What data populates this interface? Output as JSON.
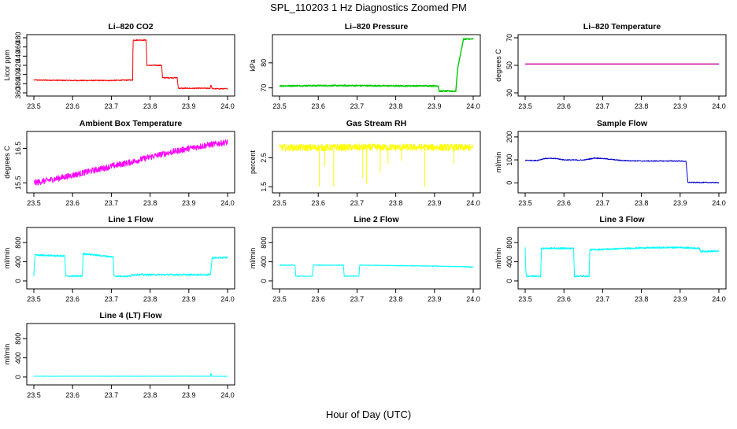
{
  "figure": {
    "title": "SPL_110203  1 Hz Diagnostics Zoomed PM",
    "xlabel": "Hour of Day (UTC)"
  },
  "chart_data": [
    {
      "type": "line",
      "title": "Li–820 CO2",
      "ylabel": "Licor ppm",
      "color": "#ff0000",
      "xlim": [
        23.5,
        24.0
      ],
      "ylim": [
        360,
        480
      ],
      "xticks": [
        "23.5",
        "23.6",
        "23.7",
        "23.8",
        "23.9",
        "24.0"
      ],
      "yticks": [
        "360",
        "380",
        "400",
        "420",
        "440",
        "460",
        "480"
      ],
      "series": [
        {
          "x": [
            23.5,
            23.6,
            23.7,
            23.745,
            23.755,
            23.756,
            23.79,
            23.792,
            23.83,
            23.832,
            23.87,
            23.873,
            23.955,
            23.957,
            23.96,
            23.962,
            24.0
          ],
          "y": [
            388,
            387,
            387,
            388,
            388,
            475,
            475,
            420,
            420,
            393,
            393,
            370,
            370,
            378,
            370,
            369,
            369
          ]
        }
      ]
    },
    {
      "type": "line",
      "title": "Li–820 Pressure",
      "ylabel": "kPa",
      "color": "#00cc00",
      "xlim": [
        23.5,
        24.0
      ],
      "ylim": [
        68,
        90
      ],
      "xticks": [
        "23.5",
        "23.6",
        "23.7",
        "23.8",
        "23.9",
        "24.0"
      ],
      "yticks": [
        "70",
        "80"
      ],
      "series": [
        {
          "x": [
            23.5,
            23.6,
            23.7,
            23.8,
            23.9,
            23.91,
            23.912,
            23.955,
            23.96,
            23.975,
            24.0
          ],
          "y": [
            70.8,
            70.9,
            70.9,
            70.8,
            70.8,
            70.8,
            68.7,
            68.7,
            78,
            89.5,
            89.5
          ]
        }
      ]
    },
    {
      "type": "line",
      "title": "Li–820 Temperature",
      "ylabel": "degrees C",
      "color": "#cc0099",
      "xlim": [
        23.5,
        24.0
      ],
      "ylim": [
        30,
        70
      ],
      "xticks": [
        "23.5",
        "23.6",
        "23.7",
        "23.8",
        "23.9",
        "24.0"
      ],
      "yticks": [
        "30",
        "50",
        "70"
      ],
      "series": [
        {
          "x": [
            23.5,
            24.0
          ],
          "y": [
            51,
            51
          ]
        }
      ]
    },
    {
      "type": "line",
      "title": "Ambient Box Temperature",
      "ylabel": "degrees C",
      "color": "#ff00ff",
      "xlim": [
        23.5,
        24.0
      ],
      "ylim": [
        15.3,
        16.9
      ],
      "xticks": [
        "23.5",
        "23.6",
        "23.7",
        "23.8",
        "23.9",
        "24.0"
      ],
      "yticks": [
        "15.5",
        "16.5"
      ],
      "series": [
        {
          "x": [
            23.5,
            23.55,
            23.6,
            23.65,
            23.7,
            23.75,
            23.8,
            23.85,
            23.9,
            23.95,
            24.0
          ],
          "y": [
            15.5,
            15.6,
            15.72,
            15.85,
            15.98,
            16.1,
            16.25,
            16.38,
            16.5,
            16.6,
            16.68
          ]
        }
      ]
    },
    {
      "type": "line",
      "title": "Gas Stream RH",
      "ylabel": "percent",
      "color": "#ffff00",
      "xlim": [
        23.5,
        24.0
      ],
      "ylim": [
        1.4,
        3.3
      ],
      "xticks": [
        "23.5",
        "23.6",
        "23.7",
        "23.8",
        "23.9",
        "24.0"
      ],
      "yticks": [
        "1.5",
        "2.5"
      ],
      "series": [
        {
          "x": [
            23.5,
            23.6,
            23.7,
            23.8,
            23.9,
            24.0
          ],
          "y": [
            2.85,
            2.85,
            2.86,
            2.86,
            2.86,
            2.85
          ]
        }
      ]
    },
    {
      "type": "line",
      "title": "Sample Flow",
      "ylabel": "ml/min",
      "color": "#0000cc",
      "xlim": [
        23.5,
        24.0
      ],
      "ylim": [
        -30,
        210
      ],
      "xticks": [
        "23.5",
        "23.6",
        "23.7",
        "23.8",
        "23.9",
        "24.0"
      ],
      "yticks": [
        "0",
        "100",
        "200"
      ],
      "series": [
        {
          "x": [
            23.5,
            23.53,
            23.55,
            23.58,
            23.6,
            23.65,
            23.68,
            23.7,
            23.75,
            23.8,
            23.9,
            23.915,
            23.92,
            24.0
          ],
          "y": [
            98,
            97,
            106,
            106,
            100,
            99,
            108,
            106,
            97,
            95,
            95,
            93,
            2,
            1
          ]
        }
      ]
    },
    {
      "type": "line",
      "title": "Line 1 Flow",
      "ylabel": "ml/min",
      "color": "#00ffff",
      "xlim": [
        23.5,
        24.0
      ],
      "ylim": [
        -100,
        1050
      ],
      "xticks": [
        "23.5",
        "23.6",
        "23.7",
        "23.8",
        "23.9",
        "24.0"
      ],
      "yticks": [
        "0",
        "400",
        "800"
      ],
      "series": [
        {
          "x": [
            23.5,
            23.501,
            23.503,
            23.58,
            23.582,
            23.625,
            23.627,
            23.705,
            23.707,
            23.75,
            23.752,
            23.955,
            23.957,
            23.96,
            24.0
          ],
          "y": [
            100,
            300,
            540,
            520,
            100,
            100,
            570,
            500,
            100,
            100,
            130,
            130,
            200,
            480,
            490
          ]
        }
      ]
    },
    {
      "type": "line",
      "title": "Line 2 Flow",
      "ylabel": "ml/min",
      "color": "#00ffff",
      "xlim": [
        23.5,
        24.0
      ],
      "ylim": [
        -100,
        1050
      ],
      "xticks": [
        "23.5",
        "23.6",
        "23.7",
        "23.8",
        "23.9",
        "24.0"
      ],
      "yticks": [
        "0",
        "400",
        "800"
      ],
      "series": [
        {
          "x": [
            23.5,
            23.54,
            23.542,
            23.585,
            23.587,
            23.665,
            23.667,
            23.705,
            23.707,
            23.8,
            23.9,
            23.96,
            24.0
          ],
          "y": [
            330,
            330,
            100,
            100,
            330,
            330,
            100,
            100,
            330,
            320,
            310,
            300,
            290
          ]
        }
      ]
    },
    {
      "type": "line",
      "title": "Line 3 Flow",
      "ylabel": "ml/min",
      "color": "#00ffff",
      "xlim": [
        23.5,
        24.0
      ],
      "ylim": [
        -100,
        1050
      ],
      "xticks": [
        "23.5",
        "23.6",
        "23.7",
        "23.8",
        "23.9",
        "24.0"
      ],
      "yticks": [
        "0",
        "400",
        "800"
      ],
      "series": [
        {
          "x": [
            23.5,
            23.501,
            23.503,
            23.54,
            23.542,
            23.625,
            23.627,
            23.665,
            23.667,
            23.8,
            23.9,
            23.95,
            23.952,
            24.0
          ],
          "y": [
            700,
            300,
            100,
            100,
            680,
            680,
            100,
            100,
            650,
            690,
            700,
            680,
            620,
            620
          ]
        }
      ]
    },
    {
      "type": "line",
      "title": "Line 4 (LT) Flow",
      "ylabel": "ml/min",
      "color": "#00ffff",
      "xlim": [
        23.5,
        24.0
      ],
      "ylim": [
        -100,
        1050
      ],
      "xticks": [
        "23.5",
        "23.6",
        "23.7",
        "23.8",
        "23.9",
        "24.0"
      ],
      "yticks": [
        "0",
        "400",
        "800"
      ],
      "series": [
        {
          "x": [
            23.5,
            23.9,
            23.955,
            23.957,
            23.96,
            23.962,
            24.0
          ],
          "y": [
            15,
            15,
            15,
            70,
            15,
            15,
            15
          ]
        }
      ]
    }
  ]
}
